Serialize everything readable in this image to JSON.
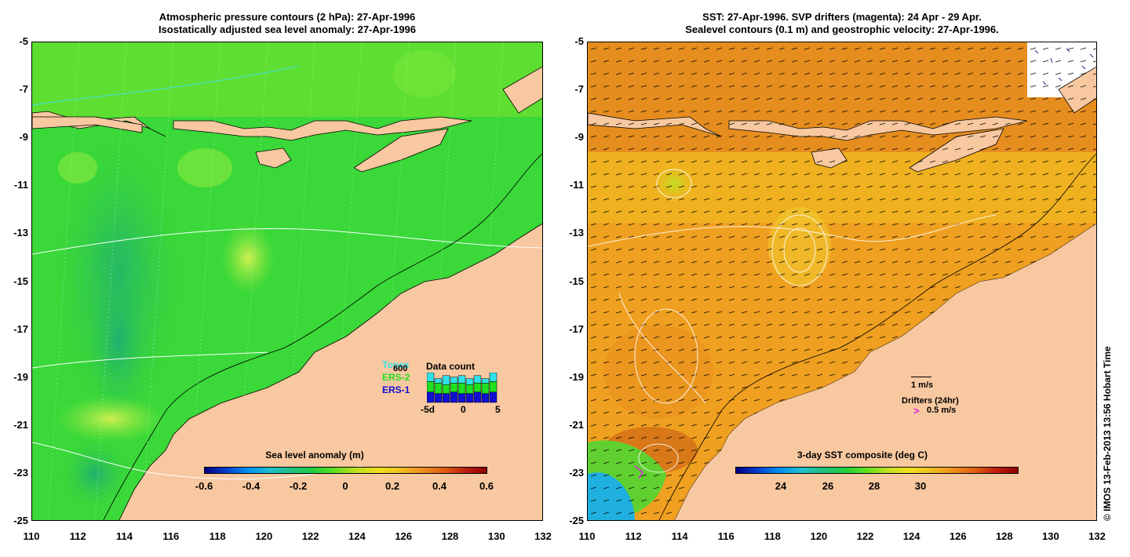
{
  "left_panel": {
    "title_line1": "Atmospheric pressure contours (2 hPa): 27-Apr-1996",
    "title_line2": "Isostatically adjusted sea level anomaly: 27-Apr-1996",
    "colorbar_title": "Sea level anomaly (m)",
    "colorbar_ticks": [
      "-0.6",
      "-0.4",
      "-0.2",
      "0",
      "0.2",
      "0.4",
      "0.6"
    ],
    "legend": {
      "topex": "Topex",
      "ers2": "ERS-2",
      "ers1": "ERS-1",
      "count_value": "600",
      "count_title": "Data count",
      "axis_left": "-5d",
      "axis_mid": "0",
      "axis_right": "5",
      "bars": [
        {
          "ers1": 0.35,
          "ers2": 0.35,
          "topex": 0.3
        },
        {
          "ers1": 0.3,
          "ers2": 0.35,
          "topex": 0.15
        },
        {
          "ers1": 0.3,
          "ers2": 0.3,
          "topex": 0.3
        },
        {
          "ers1": 0.35,
          "ers2": 0.3,
          "topex": 0.2
        },
        {
          "ers1": 0.3,
          "ers2": 0.35,
          "topex": 0.25
        },
        {
          "ers1": 0.3,
          "ers2": 0.3,
          "topex": 0.2
        },
        {
          "ers1": 0.35,
          "ers2": 0.3,
          "topex": 0.25
        },
        {
          "ers1": 0.3,
          "ers2": 0.35,
          "topex": 0.15
        },
        {
          "ers1": 0.35,
          "ers2": 0.35,
          "topex": 0.3
        }
      ]
    }
  },
  "right_panel": {
    "title_line1": "SST: 27-Apr-1996. SVP drifters (magenta): 24 Apr - 29 Apr.",
    "title_line2": "Sealevel contours (0.1 m) and geostrophic velocity: 27-Apr-1996.",
    "colorbar_title": "3-day SST composite (deg C)",
    "colorbar_ticks": [
      "24",
      "26",
      "28",
      "30"
    ],
    "velocity_scale": "1 m/s",
    "drifters_label": "Drifters (24hr)",
    "drifter_marker": ">",
    "drifter_scale": "0.5 m/s",
    "credit": "© IMOS 13-Feb-2013 13:56 Hobart Time"
  },
  "y_ticks": [
    "-5",
    "-7",
    "-9",
    "-11",
    "-13",
    "-15",
    "-17",
    "-19",
    "-21",
    "-23",
    "-25"
  ],
  "x_ticks": [
    "110",
    "112",
    "114",
    "116",
    "118",
    "120",
    "122",
    "124",
    "126",
    "128",
    "130",
    "132"
  ],
  "colors": {
    "land": "#f8c8a0",
    "ocean_left": "#3ad838",
    "ocean_right": "#f0a020",
    "topex": "#30e0e8",
    "ers2": "#20e020",
    "ers1": "#1010d0",
    "drifter": "#e020e0"
  }
}
